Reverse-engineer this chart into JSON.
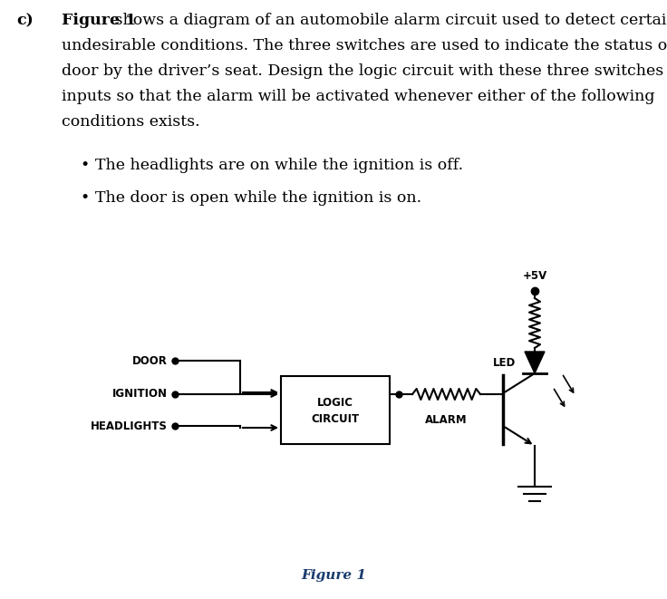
{
  "bg_color": "#ffffff",
  "text_color": "#000000",
  "fig_label_color": "#1a3a6e",
  "font_size_body": 12.5,
  "fig_width": 7.36,
  "fig_height": 6.61,
  "label_door": "DOOR",
  "label_ignition": "IGNITION",
  "label_headlights": "HEADLIGHTS",
  "label_logic1": "LOGIC",
  "label_logic2": "CIRCUIT",
  "label_alarm": "ALARM",
  "label_led": "LED",
  "label_5v": "+5V",
  "figure_label": "Figure 1",
  "bullet1": "The headlights are on while the ignition is off.",
  "bullet2": "The door is open while the ignition is on.",
  "para_line1_bold": "Figure 1",
  "para_line1_rest": " shows a diagram of an automobile alarm circuit used to detect certain",
  "para_line2": "undesirable conditions. The three switches are used to indicate the status of the",
  "para_line3": "door by the driver’s seat. Design the logic circuit with these three switches as",
  "para_line4": "inputs so that the alarm will be activated whenever either of the following",
  "para_line5": "conditions exists."
}
